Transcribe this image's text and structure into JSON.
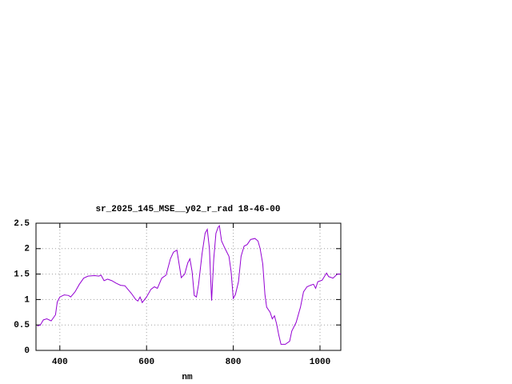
{
  "chart_data": {
    "type": "line",
    "title": "sr_2025_145_MSE__y02_r_rad 18-46-00",
    "x_label": "nm",
    "color": "#9400d3",
    "x": [
      348,
      355,
      362,
      370,
      380,
      390,
      394,
      400,
      410,
      420,
      425,
      435,
      445,
      455,
      465,
      480,
      490,
      495,
      502,
      510,
      520,
      530,
      540,
      550,
      565,
      575,
      580,
      585,
      590,
      600,
      610,
      618,
      625,
      635,
      640,
      645,
      655,
      662,
      670,
      675,
      680,
      688,
      695,
      700,
      705,
      710,
      715,
      720,
      728,
      735,
      740,
      745,
      750,
      755,
      760,
      765,
      768,
      773,
      780,
      790,
      795,
      800,
      805,
      812,
      818,
      825,
      832,
      840,
      850,
      857,
      862,
      868,
      873,
      877,
      885,
      890,
      895,
      900,
      905,
      910,
      920,
      930,
      935,
      945,
      955,
      962,
      970,
      978,
      985,
      990,
      995,
      1005,
      1015,
      1020,
      1030,
      1040,
      1048
    ],
    "values": [
      0.48,
      0.5,
      0.6,
      0.62,
      0.58,
      0.7,
      0.95,
      1.05,
      1.09,
      1.08,
      1.05,
      1.15,
      1.3,
      1.42,
      1.46,
      1.47,
      1.46,
      1.48,
      1.37,
      1.4,
      1.37,
      1.32,
      1.28,
      1.27,
      1.12,
      1.0,
      0.97,
      1.05,
      0.94,
      1.05,
      1.2,
      1.25,
      1.22,
      1.42,
      1.45,
      1.48,
      1.8,
      1.93,
      1.97,
      1.7,
      1.43,
      1.5,
      1.72,
      1.8,
      1.55,
      1.08,
      1.05,
      1.3,
      1.9,
      2.3,
      2.38,
      2.0,
      0.98,
      1.8,
      2.3,
      2.42,
      2.45,
      2.15,
      2.02,
      1.85,
      1.55,
      1.02,
      1.1,
      1.35,
      1.85,
      2.05,
      2.08,
      2.18,
      2.2,
      2.15,
      2.0,
      1.7,
      1.1,
      0.85,
      0.75,
      0.62,
      0.68,
      0.52,
      0.3,
      0.12,
      0.12,
      0.18,
      0.38,
      0.55,
      0.85,
      1.15,
      1.25,
      1.28,
      1.3,
      1.22,
      1.35,
      1.38,
      1.52,
      1.45,
      1.42,
      1.5,
      1.5
    ],
    "xlim": [
      345,
      1048
    ],
    "xticks": [
      400,
      600,
      800,
      1000
    ],
    "ylim": [
      0,
      2.5
    ],
    "yticks": [
      0,
      0.5,
      1,
      1.5,
      2,
      2.5
    ],
    "grid": true
  }
}
